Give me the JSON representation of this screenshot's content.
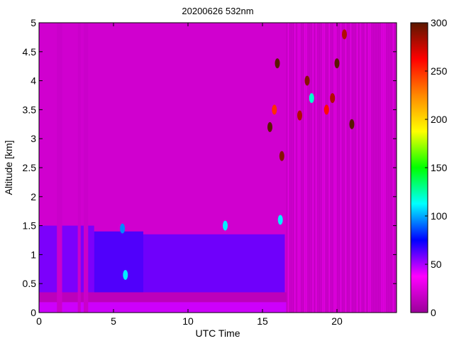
{
  "chart_data": {
    "type": "heatmap",
    "title": "20200626 532nm",
    "xlabel": "UTC Time",
    "ylabel": "Altitude [km]",
    "xlim": [
      0,
      24
    ],
    "ylim": [
      0,
      5
    ],
    "xticks": [
      0,
      5,
      10,
      15,
      20
    ],
    "yticks": [
      0,
      0.5,
      1,
      1.5,
      2,
      2.5,
      3,
      3.5,
      4,
      4.5,
      5
    ],
    "colorbar": {
      "range": [
        0,
        300
      ],
      "ticks": [
        0,
        50,
        100,
        150,
        200,
        250,
        300
      ],
      "colormap": [
        "#9a0099",
        "#ff00ff",
        "#0000ff",
        "#00ffff",
        "#00ff00",
        "#ffff00",
        "#ff8800",
        "#ff0000",
        "#5a1800"
      ]
    },
    "background_value": 20,
    "layers": [
      {
        "x": [
          0,
          16.6
        ],
        "y": [
          0,
          0.18
        ],
        "value": 45
      },
      {
        "x": [
          0,
          16.6
        ],
        "y": [
          0.18,
          0.35
        ],
        "value": 12
      },
      {
        "x": [
          0,
          3.7
        ],
        "y": [
          0.35,
          1.5
        ],
        "value": 58
      },
      {
        "x": [
          3.7,
          7
        ],
        "y": [
          0.35,
          1.4
        ],
        "value": 65
      },
      {
        "x": [
          7,
          16.5
        ],
        "y": [
          0.35,
          1.35
        ],
        "value": 60
      }
    ],
    "gaps": [
      {
        "x": [
          1.2,
          1.55
        ],
        "value": 18
      },
      {
        "x": [
          2.6,
          2.8
        ],
        "value": 18
      },
      {
        "x": [
          3.0,
          3.3
        ],
        "value": 18
      }
    ],
    "features": [
      {
        "x": 5.8,
        "y": 0.65,
        "value": 110
      },
      {
        "x": 5.6,
        "y": 1.45,
        "value": 95
      },
      {
        "x": 15.5,
        "y": 3.2,
        "value": 300
      },
      {
        "x": 15.8,
        "y": 3.5,
        "value": 250
      },
      {
        "x": 16.0,
        "y": 4.3,
        "value": 300
      },
      {
        "x": 16.2,
        "y": 1.6,
        "value": 110
      },
      {
        "x": 16.3,
        "y": 2.7,
        "value": 290
      },
      {
        "x": 17.5,
        "y": 3.4,
        "value": 280
      },
      {
        "x": 18.0,
        "y": 4.0,
        "value": 290
      },
      {
        "x": 18.3,
        "y": 3.7,
        "value": 120
      },
      {
        "x": 19.3,
        "y": 3.5,
        "value": 260
      },
      {
        "x": 19.7,
        "y": 3.7,
        "value": 280
      },
      {
        "x": 20.0,
        "y": 4.3,
        "value": 300
      },
      {
        "x": 20.5,
        "y": 4.8,
        "value": 280
      },
      {
        "x": 21.0,
        "y": 3.25,
        "value": 300
      },
      {
        "x": 12.5,
        "y": 1.5,
        "value": 110
      }
    ],
    "grid": false
  }
}
